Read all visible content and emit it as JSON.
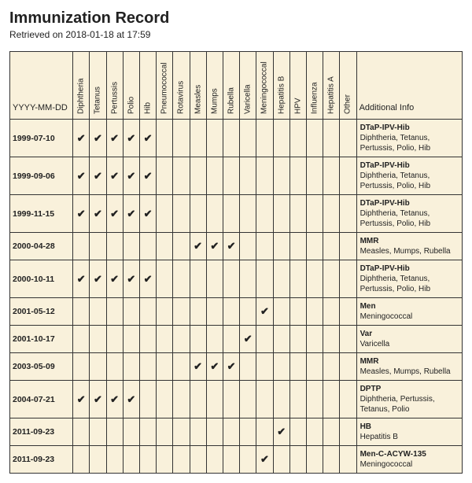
{
  "title": "Immunization Record",
  "retrieved": "Retrieved on 2018-01-18 at 17:59",
  "columns": {
    "date_header": "YYYY-MM-DD",
    "info_header": "Additional Info",
    "vaccines": [
      "Diphtheria",
      "Tetanus",
      "Pertussis",
      "Polio",
      "Hib",
      "Pneumococcal",
      "Rotavirus",
      "Measles",
      "Mumps",
      "Rubella",
      "Varicella",
      "Meningococcal",
      "Hepatitis B",
      "HPV",
      "Influenza",
      "Hepatitis A",
      "Other"
    ]
  },
  "checkmark": "✔",
  "rows": [
    {
      "date": "1999-07-10",
      "checks": [
        1,
        1,
        1,
        1,
        1,
        0,
        0,
        0,
        0,
        0,
        0,
        0,
        0,
        0,
        0,
        0,
        0
      ],
      "info_name": "DTaP-IPV-Hib",
      "info_desc": "Diphtheria, Tetanus, Pertussis, Polio, Hib"
    },
    {
      "date": "1999-09-06",
      "checks": [
        1,
        1,
        1,
        1,
        1,
        0,
        0,
        0,
        0,
        0,
        0,
        0,
        0,
        0,
        0,
        0,
        0
      ],
      "info_name": "DTaP-IPV-Hib",
      "info_desc": "Diphtheria, Tetanus, Pertussis, Polio, Hib"
    },
    {
      "date": "1999-11-15",
      "checks": [
        1,
        1,
        1,
        1,
        1,
        0,
        0,
        0,
        0,
        0,
        0,
        0,
        0,
        0,
        0,
        0,
        0
      ],
      "info_name": "DTaP-IPV-Hib",
      "info_desc": "Diphtheria, Tetanus, Pertussis, Polio, Hib"
    },
    {
      "date": "2000-04-28",
      "checks": [
        0,
        0,
        0,
        0,
        0,
        0,
        0,
        1,
        1,
        1,
        0,
        0,
        0,
        0,
        0,
        0,
        0
      ],
      "info_name": "MMR",
      "info_desc": "Measles, Mumps, Rubella"
    },
    {
      "date": "2000-10-11",
      "checks": [
        1,
        1,
        1,
        1,
        1,
        0,
        0,
        0,
        0,
        0,
        0,
        0,
        0,
        0,
        0,
        0,
        0
      ],
      "info_name": "DTaP-IPV-Hib",
      "info_desc": "Diphtheria, Tetanus, Pertussis, Polio, Hib"
    },
    {
      "date": "2001-05-12",
      "checks": [
        0,
        0,
        0,
        0,
        0,
        0,
        0,
        0,
        0,
        0,
        0,
        1,
        0,
        0,
        0,
        0,
        0
      ],
      "info_name": "Men",
      "info_desc": "Meningococcal"
    },
    {
      "date": "2001-10-17",
      "checks": [
        0,
        0,
        0,
        0,
        0,
        0,
        0,
        0,
        0,
        0,
        1,
        0,
        0,
        0,
        0,
        0,
        0
      ],
      "info_name": "Var",
      "info_desc": "Varicella"
    },
    {
      "date": "2003-05-09",
      "checks": [
        0,
        0,
        0,
        0,
        0,
        0,
        0,
        1,
        1,
        1,
        0,
        0,
        0,
        0,
        0,
        0,
        0
      ],
      "info_name": "MMR",
      "info_desc": "Measles, Mumps, Rubella"
    },
    {
      "date": "2004-07-21",
      "checks": [
        1,
        1,
        1,
        1,
        0,
        0,
        0,
        0,
        0,
        0,
        0,
        0,
        0,
        0,
        0,
        0,
        0
      ],
      "info_name": "DPTP",
      "info_desc": "Diphtheria, Pertussis, Tetanus, Polio"
    },
    {
      "date": "2011-09-23",
      "checks": [
        0,
        0,
        0,
        0,
        0,
        0,
        0,
        0,
        0,
        0,
        0,
        0,
        1,
        0,
        0,
        0,
        0
      ],
      "info_name": "HB",
      "info_desc": "Hepatitis B"
    },
    {
      "date": "2011-09-23",
      "checks": [
        0,
        0,
        0,
        0,
        0,
        0,
        0,
        0,
        0,
        0,
        0,
        1,
        0,
        0,
        0,
        0,
        0
      ],
      "info_name": "Men-C-ACYW-135",
      "info_desc": "Meningococcal"
    }
  ],
  "colors": {
    "table_bg": "#f9f1db",
    "border": "#333333",
    "text": "#222222"
  }
}
